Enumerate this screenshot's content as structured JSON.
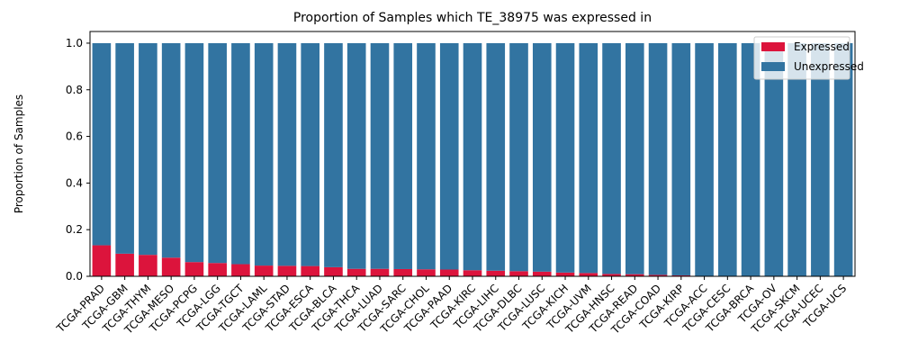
{
  "chart_data": {
    "type": "bar",
    "stacked": true,
    "title": "Proportion of Samples which TE_38975 was expressed in",
    "xlabel": "",
    "ylabel": "Proportion of Samples",
    "ylim": [
      0,
      1.05
    ],
    "yticks": [
      0.0,
      0.2,
      0.4,
      0.6,
      0.8,
      1.0
    ],
    "ytick_labels": [
      "0.0",
      "0.2",
      "0.4",
      "0.6",
      "0.8",
      "1.0"
    ],
    "grid": false,
    "legend_position": "top-right",
    "categories": [
      "TCGA-PRAD",
      "TCGA-GBM",
      "TCGA-THYM",
      "TCGA-MESO",
      "TCGA-PCPG",
      "TCGA-LGG",
      "TCGA-TGCT",
      "TCGA-LAML",
      "TCGA-STAD",
      "TCGA-ESCA",
      "TCGA-BLCA",
      "TCGA-THCA",
      "TCGA-LUAD",
      "TCGA-SARC",
      "TCGA-CHOL",
      "TCGA-PAAD",
      "TCGA-KIRC",
      "TCGA-LIHC",
      "TCGA-DLBC",
      "TCGA-LUSC",
      "TCGA-KICH",
      "TCGA-UVM",
      "TCGA-HNSC",
      "TCGA-READ",
      "TCGA-COAD",
      "TCGA-KIRP",
      "TCGA-ACC",
      "TCGA-CESC",
      "TCGA-BRCA",
      "TCGA-OV",
      "TCGA-SKCM",
      "TCGA-UCEC",
      "TCGA-UCS"
    ],
    "series": [
      {
        "name": "Expressed",
        "color": "#dc143c",
        "values": [
          0.133,
          0.097,
          0.092,
          0.08,
          0.061,
          0.057,
          0.052,
          0.046,
          0.045,
          0.044,
          0.039,
          0.032,
          0.032,
          0.031,
          0.03,
          0.029,
          0.026,
          0.024,
          0.022,
          0.02,
          0.016,
          0.014,
          0.01,
          0.009,
          0.006,
          0.004,
          0.0,
          0.0,
          0.0,
          0.0,
          0.0,
          0.0,
          0.0
        ]
      },
      {
        "name": "Unexpressed",
        "color": "#3274a1",
        "values": [
          0.867,
          0.903,
          0.908,
          0.92,
          0.939,
          0.943,
          0.948,
          0.954,
          0.955,
          0.956,
          0.961,
          0.968,
          0.968,
          0.969,
          0.97,
          0.971,
          0.974,
          0.976,
          0.978,
          0.98,
          0.984,
          0.986,
          0.99,
          0.991,
          0.994,
          0.996,
          1.0,
          1.0,
          1.0,
          1.0,
          1.0,
          1.0,
          1.0
        ]
      }
    ]
  }
}
